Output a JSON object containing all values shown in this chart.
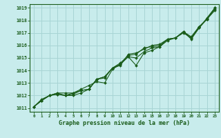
{
  "xlabel": "Graphe pression niveau de la mer (hPa)",
  "xlim": [
    -0.5,
    23.5
  ],
  "ylim": [
    1010.7,
    1019.3
  ],
  "yticks": [
    1011,
    1012,
    1013,
    1014,
    1015,
    1016,
    1017,
    1018,
    1019
  ],
  "xticks": [
    0,
    1,
    2,
    3,
    4,
    5,
    6,
    7,
    8,
    9,
    10,
    11,
    12,
    13,
    14,
    15,
    16,
    17,
    18,
    19,
    20,
    21,
    22,
    23
  ],
  "bg_color": "#c8ecec",
  "grid_color": "#a8d4d4",
  "line_color": "#1a5c1a",
  "series": [
    [
      1011.1,
      1011.6,
      1012.0,
      1012.1,
      1012.0,
      1012.1,
      1012.4,
      1012.5,
      1013.3,
      1013.5,
      1014.2,
      1014.6,
      1015.2,
      1015.3,
      1015.8,
      1015.9,
      1016.0,
      1016.5,
      1016.6,
      1017.1,
      1016.6,
      1017.5,
      1018.1,
      1019.0
    ],
    [
      1011.1,
      1011.6,
      1012.0,
      1012.1,
      1012.0,
      1012.2,
      1012.4,
      1012.5,
      1013.3,
      1013.4,
      1014.2,
      1014.4,
      1015.3,
      1015.4,
      1015.7,
      1016.0,
      1016.1,
      1016.5,
      1016.6,
      1017.1,
      1016.7,
      1017.5,
      1018.1,
      1018.8
    ],
    [
      1011.1,
      1011.6,
      1012.0,
      1012.2,
      1012.2,
      1012.2,
      1012.5,
      1012.8,
      1013.1,
      1013.0,
      1014.1,
      1014.5,
      1015.1,
      1014.4,
      1015.4,
      1015.6,
      1015.9,
      1016.5,
      1016.6,
      1017.1,
      1016.5,
      1017.4,
      1018.2,
      1019.0
    ],
    [
      1011.1,
      1011.7,
      1012.0,
      1012.2,
      1012.0,
      1012.0,
      1012.2,
      1012.5,
      1013.3,
      1013.5,
      1014.2,
      1014.5,
      1015.1,
      1015.0,
      1015.5,
      1015.8,
      1015.9,
      1016.4,
      1016.6,
      1017.0,
      1016.6,
      1017.4,
      1018.1,
      1018.9
    ]
  ]
}
